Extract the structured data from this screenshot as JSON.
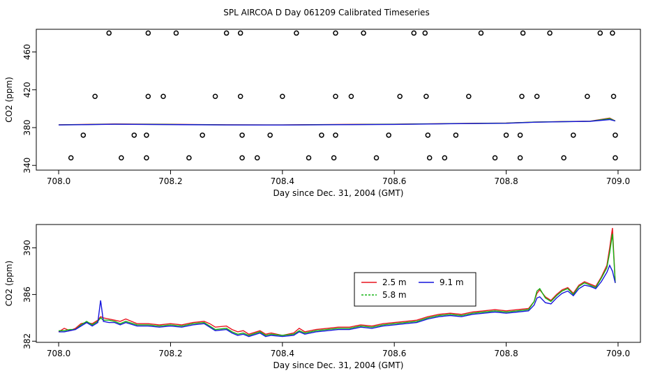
{
  "figure_title": "SPL AIRCOA D  Day 061209  Calibrated Timeseries",
  "chart_data": [
    {
      "type": "scatter+line",
      "xlabel": "Day since Dec. 31, 2004 (GMT)",
      "ylabel": "CO2 (ppm)",
      "xlim": [
        707.96,
        709.04
      ],
      "ylim": [
        335,
        484
      ],
      "xticks": [
        708.0,
        708.2,
        708.4,
        708.6,
        708.8,
        709.0
      ],
      "xtick_labels": [
        "708.0",
        "708.2",
        "708.4",
        "708.6",
        "708.8",
        "709.0"
      ],
      "yticks": [
        340,
        380,
        420,
        460
      ],
      "ytick_labels": [
        "340",
        "380",
        "420",
        "460"
      ],
      "calibration_points": [
        {
          "x": 708.09,
          "y": 480
        },
        {
          "x": 708.16,
          "y": 480
        },
        {
          "x": 708.21,
          "y": 480
        },
        {
          "x": 708.3,
          "y": 480
        },
        {
          "x": 708.325,
          "y": 480
        },
        {
          "x": 708.425,
          "y": 480
        },
        {
          "x": 708.495,
          "y": 480
        },
        {
          "x": 708.545,
          "y": 480
        },
        {
          "x": 708.635,
          "y": 480
        },
        {
          "x": 708.655,
          "y": 480
        },
        {
          "x": 708.755,
          "y": 480
        },
        {
          "x": 708.83,
          "y": 480
        },
        {
          "x": 708.878,
          "y": 480
        },
        {
          "x": 708.968,
          "y": 480
        },
        {
          "x": 708.99,
          "y": 480
        },
        {
          "x": 708.065,
          "y": 413
        },
        {
          "x": 708.16,
          "y": 413
        },
        {
          "x": 708.187,
          "y": 413
        },
        {
          "x": 708.28,
          "y": 413
        },
        {
          "x": 708.325,
          "y": 413
        },
        {
          "x": 708.4,
          "y": 413
        },
        {
          "x": 708.495,
          "y": 413
        },
        {
          "x": 708.523,
          "y": 413
        },
        {
          "x": 708.61,
          "y": 413
        },
        {
          "x": 708.657,
          "y": 413
        },
        {
          "x": 708.733,
          "y": 413
        },
        {
          "x": 708.828,
          "y": 413
        },
        {
          "x": 708.855,
          "y": 413
        },
        {
          "x": 708.945,
          "y": 413
        },
        {
          "x": 708.992,
          "y": 413
        },
        {
          "x": 708.044,
          "y": 372
        },
        {
          "x": 708.135,
          "y": 372
        },
        {
          "x": 708.157,
          "y": 372
        },
        {
          "x": 708.257,
          "y": 372
        },
        {
          "x": 708.328,
          "y": 372
        },
        {
          "x": 708.378,
          "y": 372
        },
        {
          "x": 708.47,
          "y": 372
        },
        {
          "x": 708.495,
          "y": 372
        },
        {
          "x": 708.59,
          "y": 372
        },
        {
          "x": 708.66,
          "y": 372
        },
        {
          "x": 708.71,
          "y": 372
        },
        {
          "x": 708.8,
          "y": 372
        },
        {
          "x": 708.825,
          "y": 372
        },
        {
          "x": 708.92,
          "y": 372
        },
        {
          "x": 708.995,
          "y": 372
        },
        {
          "x": 708.022,
          "y": 348
        },
        {
          "x": 708.112,
          "y": 348
        },
        {
          "x": 708.157,
          "y": 348
        },
        {
          "x": 708.233,
          "y": 348
        },
        {
          "x": 708.328,
          "y": 348
        },
        {
          "x": 708.355,
          "y": 348
        },
        {
          "x": 708.447,
          "y": 348
        },
        {
          "x": 708.492,
          "y": 348
        },
        {
          "x": 708.568,
          "y": 348
        },
        {
          "x": 708.663,
          "y": 348
        },
        {
          "x": 708.69,
          "y": 348
        },
        {
          "x": 708.78,
          "y": 348
        },
        {
          "x": 708.825,
          "y": 348
        },
        {
          "x": 708.903,
          "y": 348
        },
        {
          "x": 708.995,
          "y": 348
        }
      ],
      "series": [
        {
          "name": "2.5 m",
          "color": "#e8141e",
          "x": [
            708.0,
            708.1,
            708.2,
            708.3,
            708.4,
            708.5,
            708.6,
            708.7,
            708.8,
            708.85,
            708.9,
            708.95,
            708.985,
            708.995
          ],
          "y": [
            383.0,
            383.8,
            383.5,
            383.0,
            382.9,
            383.3,
            383.6,
            384.3,
            384.8,
            385.8,
            386.4,
            386.8,
            390.0,
            387.0
          ]
        },
        {
          "name": "5.8 m",
          "color": "#14b414",
          "x": [
            708.0,
            708.1,
            708.2,
            708.3,
            708.4,
            708.5,
            708.6,
            708.7,
            708.8,
            708.85,
            708.9,
            708.95,
            708.985,
            708.995
          ],
          "y": [
            382.9,
            383.6,
            383.3,
            382.9,
            382.8,
            383.2,
            383.5,
            384.2,
            384.7,
            385.8,
            386.3,
            386.7,
            389.5,
            387.0
          ]
        },
        {
          "name": "9.1 m",
          "color": "#1414dc",
          "x": [
            708.0,
            708.1,
            708.2,
            708.3,
            708.4,
            708.5,
            708.6,
            708.7,
            708.8,
            708.85,
            708.9,
            708.95,
            708.985,
            708.995
          ],
          "y": [
            382.8,
            383.5,
            383.2,
            382.8,
            382.7,
            383.1,
            383.4,
            384.1,
            384.6,
            385.7,
            386.2,
            386.6,
            388.5,
            387.0
          ]
        }
      ]
    },
    {
      "type": "line",
      "xlabel": "Day since Dec. 31, 2004 (GMT)",
      "ylabel": "CO2 (ppm)",
      "xlim": [
        707.96,
        709.04
      ],
      "ylim": [
        381.9,
        392.0
      ],
      "xticks": [
        708.0,
        708.2,
        708.4,
        708.6,
        708.8,
        709.0
      ],
      "xtick_labels": [
        "708.0",
        "708.2",
        "708.4",
        "708.6",
        "708.8",
        "709.0"
      ],
      "yticks": [
        382,
        386,
        390
      ],
      "ytick_labels": [
        "382",
        "386",
        "390"
      ],
      "legend": {
        "placement": "center-right",
        "entries": [
          "2.5 m",
          "5.8 m",
          "9.1 m"
        ]
      },
      "series": [
        {
          "name": "2.5 m",
          "color": "#e8141e",
          "x": [
            708.0,
            708.01,
            708.02,
            708.03,
            708.04,
            708.05,
            708.06,
            708.07,
            708.075,
            708.08,
            708.09,
            708.1,
            708.11,
            708.12,
            708.14,
            708.16,
            708.18,
            708.2,
            708.22,
            708.24,
            708.26,
            708.27,
            708.28,
            708.3,
            708.31,
            708.32,
            708.33,
            708.34,
            708.36,
            708.37,
            708.38,
            708.4,
            708.42,
            708.43,
            708.44,
            708.46,
            708.48,
            708.5,
            708.52,
            708.54,
            708.56,
            708.58,
            708.6,
            708.62,
            708.64,
            708.66,
            708.68,
            708.7,
            708.72,
            708.74,
            708.76,
            708.78,
            708.8,
            708.82,
            708.84,
            708.85,
            708.855,
            708.86,
            708.87,
            708.88,
            708.89,
            708.9,
            708.91,
            708.92,
            708.93,
            708.94,
            708.95,
            708.96,
            708.97,
            708.98,
            708.985,
            708.99,
            708.995
          ],
          "y": [
            382.8,
            383.1,
            382.9,
            383.1,
            383.5,
            383.6,
            383.5,
            383.8,
            384.1,
            384.0,
            383.9,
            383.8,
            383.7,
            383.9,
            383.5,
            383.5,
            383.4,
            383.5,
            383.4,
            383.6,
            383.7,
            383.5,
            383.2,
            383.3,
            383.0,
            382.8,
            382.9,
            382.6,
            382.9,
            382.6,
            382.7,
            382.5,
            382.7,
            383.1,
            382.8,
            383.0,
            383.1,
            383.2,
            383.2,
            383.4,
            383.3,
            383.5,
            383.6,
            383.7,
            383.8,
            384.1,
            384.3,
            384.4,
            384.3,
            384.5,
            384.6,
            384.7,
            384.6,
            384.7,
            384.8,
            385.4,
            386.1,
            386.4,
            385.8,
            385.5,
            386.0,
            386.4,
            386.6,
            386.1,
            386.8,
            387.1,
            386.9,
            386.7,
            387.5,
            388.5,
            390.0,
            391.7,
            387.0
          ]
        },
        {
          "name": "5.8 m",
          "color": "#14b414",
          "x": [
            708.0,
            708.01,
            708.02,
            708.03,
            708.04,
            708.05,
            708.06,
            708.07,
            708.075,
            708.08,
            708.09,
            708.1,
            708.11,
            708.12,
            708.14,
            708.16,
            708.18,
            708.2,
            708.22,
            708.24,
            708.26,
            708.27,
            708.28,
            708.3,
            708.31,
            708.32,
            708.33,
            708.34,
            708.36,
            708.37,
            708.38,
            708.4,
            708.42,
            708.43,
            708.44,
            708.46,
            708.48,
            708.5,
            708.52,
            708.54,
            708.56,
            708.58,
            708.6,
            708.62,
            708.64,
            708.66,
            708.68,
            708.7,
            708.72,
            708.74,
            708.76,
            708.78,
            708.8,
            708.82,
            708.84,
            708.85,
            708.855,
            708.86,
            708.87,
            708.88,
            708.89,
            708.9,
            708.91,
            708.92,
            708.93,
            708.94,
            708.95,
            708.96,
            708.97,
            708.98,
            708.985,
            708.99,
            708.995
          ],
          "y": [
            382.9,
            382.9,
            383.0,
            383.0,
            383.4,
            383.7,
            383.4,
            383.7,
            384.0,
            383.8,
            383.8,
            383.7,
            383.5,
            383.7,
            383.4,
            383.4,
            383.3,
            383.4,
            383.3,
            383.5,
            383.6,
            383.3,
            383.0,
            383.1,
            382.8,
            382.6,
            382.7,
            382.5,
            382.8,
            382.5,
            382.6,
            382.5,
            382.6,
            382.9,
            382.7,
            382.9,
            383.0,
            383.1,
            383.1,
            383.3,
            383.2,
            383.4,
            383.5,
            383.6,
            383.7,
            384.0,
            384.2,
            384.3,
            384.2,
            384.4,
            384.5,
            384.6,
            384.5,
            384.6,
            384.7,
            385.4,
            386.3,
            386.5,
            385.7,
            385.4,
            385.9,
            386.3,
            386.5,
            386.0,
            386.7,
            387.0,
            386.8,
            386.6,
            387.4,
            388.3,
            389.6,
            391.2,
            387.0
          ]
        },
        {
          "name": "9.1 m",
          "color": "#1414dc",
          "x": [
            708.0,
            708.01,
            708.02,
            708.03,
            708.04,
            708.05,
            708.06,
            708.07,
            708.075,
            708.08,
            708.09,
            708.1,
            708.11,
            708.12,
            708.14,
            708.16,
            708.18,
            708.2,
            708.22,
            708.24,
            708.26,
            708.27,
            708.28,
            708.3,
            708.31,
            708.32,
            708.33,
            708.34,
            708.36,
            708.37,
            708.38,
            708.4,
            708.42,
            708.43,
            708.44,
            708.46,
            708.48,
            708.5,
            708.52,
            708.54,
            708.56,
            708.58,
            708.6,
            708.62,
            708.64,
            708.66,
            708.68,
            708.7,
            708.72,
            708.74,
            708.76,
            708.78,
            708.8,
            708.82,
            708.84,
            708.85,
            708.855,
            708.86,
            708.87,
            708.88,
            708.89,
            708.9,
            708.91,
            708.92,
            708.93,
            708.94,
            708.95,
            708.96,
            708.97,
            708.98,
            708.985,
            708.99,
            708.995
          ],
          "y": [
            382.8,
            382.8,
            382.9,
            383.0,
            383.3,
            383.6,
            383.3,
            383.6,
            385.5,
            383.7,
            383.6,
            383.6,
            383.4,
            383.6,
            383.3,
            383.3,
            383.2,
            383.3,
            383.2,
            383.4,
            383.5,
            383.2,
            382.9,
            383.0,
            382.7,
            382.5,
            382.6,
            382.4,
            382.7,
            382.4,
            382.5,
            382.4,
            382.5,
            382.8,
            382.6,
            382.8,
            382.9,
            383.0,
            383.0,
            383.2,
            383.1,
            383.3,
            383.4,
            383.5,
            383.6,
            383.9,
            384.1,
            384.2,
            384.1,
            384.3,
            384.4,
            384.5,
            384.4,
            384.5,
            384.6,
            385.1,
            385.7,
            385.8,
            385.3,
            385.2,
            385.7,
            386.1,
            386.3,
            385.9,
            386.5,
            386.8,
            386.7,
            386.5,
            387.1,
            387.9,
            388.5,
            388.0,
            387.0
          ]
        }
      ]
    }
  ]
}
